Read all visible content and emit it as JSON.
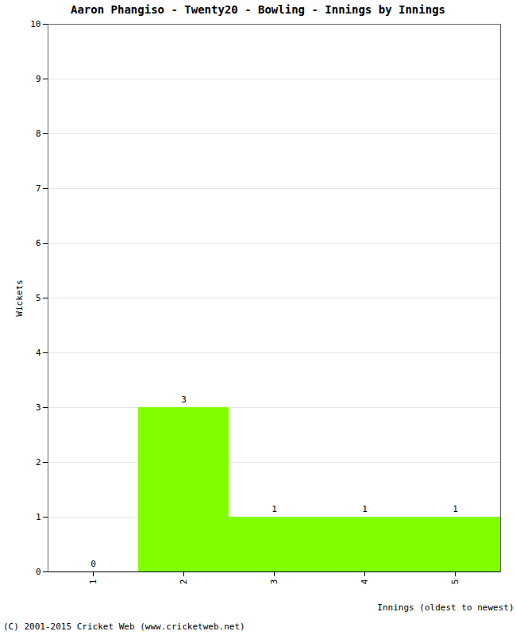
{
  "chart_data": {
    "type": "bar",
    "title": "Aaron Phangiso - Twenty20 - Bowling - Innings by Innings",
    "xlabel": "Innings (oldest to newest)",
    "ylabel": "Wickets",
    "categories": [
      "1",
      "2",
      "3",
      "4",
      "5"
    ],
    "values": [
      0,
      3,
      1,
      1,
      1
    ],
    "color": "#80ff00",
    "ylim": [
      0,
      10
    ],
    "yticks": [
      0,
      1,
      2,
      3,
      4,
      5,
      6,
      7,
      8,
      9,
      10
    ],
    "grid": true,
    "data_labels": true,
    "caption": "(C) 2001-2015 Cricket Web (www.cricketweb.net)"
  }
}
